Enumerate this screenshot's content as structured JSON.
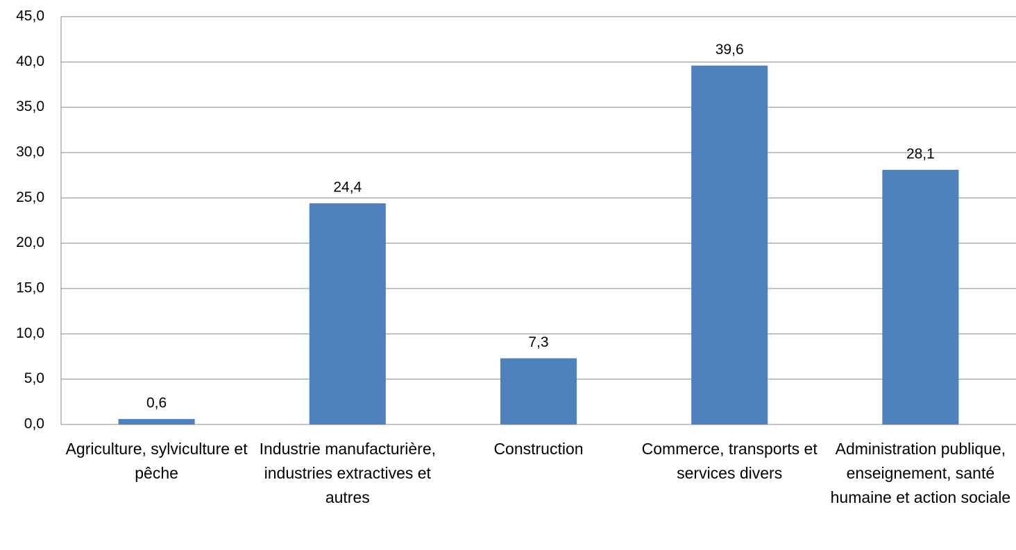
{
  "chart_data": {
    "type": "bar",
    "categories": [
      "Agriculture, sylviculture et pêche",
      "Industrie manufacturière, industries extractives et autres",
      "Construction",
      "Commerce, transports et services divers",
      "Administration publique, enseignement, santé humaine et action sociale"
    ],
    "values": [
      0.6,
      24.4,
      7.3,
      39.6,
      28.1
    ],
    "value_labels": [
      "0,6",
      "24,4",
      "7,3",
      "39,6",
      "28,1"
    ],
    "color": "#4f81bd",
    "ylim": [
      0,
      45
    ],
    "yticks": [
      {
        "value": 0,
        "label": "0,0"
      },
      {
        "value": 5,
        "label": "5,0"
      },
      {
        "value": 10,
        "label": "10,0"
      },
      {
        "value": 15,
        "label": "15,0"
      },
      {
        "value": 20,
        "label": "20,0"
      },
      {
        "value": 25,
        "label": "25,0"
      },
      {
        "value": 30,
        "label": "30,0"
      },
      {
        "value": 35,
        "label": "35,0"
      },
      {
        "value": 40,
        "label": "40,0"
      },
      {
        "value": 45,
        "label": "45,0"
      }
    ],
    "grid": true
  }
}
